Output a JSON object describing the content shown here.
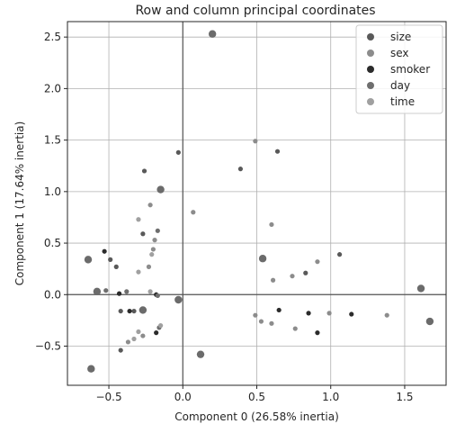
{
  "chart_data": {
    "type": "scatter",
    "title": "Row and column principal coordinates",
    "xlabel": "Component 0 (26.58% inertia)",
    "ylabel": "Component 1 (17.64% inertia)",
    "xlim": [
      -0.78,
      1.78
    ],
    "ylim": [
      -0.88,
      2.65
    ],
    "xticks": [
      -0.5,
      0.0,
      0.5,
      1.0,
      1.5
    ],
    "xtick_labels": [
      "−0.5",
      "0.0",
      "0.5",
      "1.0",
      "1.5"
    ],
    "yticks": [
      -0.5,
      0.0,
      0.5,
      1.0,
      1.5,
      2.0,
      2.5
    ],
    "ytick_labels": [
      "−0.5",
      "0.0",
      "0.5",
      "1.0",
      "1.5",
      "2.0",
      "2.5"
    ],
    "grid": true,
    "reference_lines": {
      "x": 0,
      "y": 0
    },
    "legend": {
      "placement": "top-right",
      "entries": [
        "size",
        "sex",
        "smoker",
        "day",
        "time"
      ]
    },
    "column_points": [
      {
        "x": 0.2,
        "y": 2.53
      },
      {
        "x": -0.15,
        "y": 1.02
      },
      {
        "x": -0.64,
        "y": 0.34
      },
      {
        "x": 0.54,
        "y": 0.35
      },
      {
        "x": -0.58,
        "y": 0.03
      },
      {
        "x": -0.27,
        "y": -0.15
      },
      {
        "x": -0.03,
        "y": -0.05
      },
      {
        "x": 1.61,
        "y": 0.06
      },
      {
        "x": 1.67,
        "y": -0.26
      },
      {
        "x": 0.12,
        "y": -0.58
      },
      {
        "x": -0.62,
        "y": -0.72
      }
    ],
    "series": [
      {
        "name": "size",
        "color": "#595959",
        "points": [
          {
            "x": -0.03,
            "y": 1.38
          },
          {
            "x": -0.26,
            "y": 1.2
          },
          {
            "x": -0.27,
            "y": 0.59
          },
          {
            "x": -0.49,
            "y": 0.34
          },
          {
            "x": -0.45,
            "y": 0.27
          },
          {
            "x": -0.42,
            "y": -0.16
          },
          {
            "x": -0.33,
            "y": -0.16
          },
          {
            "x": -0.42,
            "y": -0.54
          },
          {
            "x": 0.39,
            "y": 1.22
          },
          {
            "x": 0.64,
            "y": 1.39
          },
          {
            "x": 0.83,
            "y": 0.21
          },
          {
            "x": 1.06,
            "y": 0.39
          }
        ]
      },
      {
        "name": "sex",
        "color": "#8c8c8c",
        "points": [
          {
            "x": -0.22,
            "y": 0.87
          },
          {
            "x": -0.19,
            "y": 0.53
          },
          {
            "x": -0.2,
            "y": 0.44
          },
          {
            "x": -0.23,
            "y": 0.27
          },
          {
            "x": -0.37,
            "y": -0.46
          },
          {
            "x": -0.27,
            "y": -0.4
          },
          {
            "x": 0.07,
            "y": 0.8
          },
          {
            "x": 0.49,
            "y": 1.49
          },
          {
            "x": 0.6,
            "y": 0.68
          },
          {
            "x": 0.61,
            "y": 0.14
          },
          {
            "x": 0.74,
            "y": 0.18
          },
          {
            "x": 0.91,
            "y": 0.32
          },
          {
            "x": 0.49,
            "y": -0.2
          },
          {
            "x": 0.53,
            "y": -0.26
          },
          {
            "x": 0.6,
            "y": -0.28
          },
          {
            "x": 0.76,
            "y": -0.33
          },
          {
            "x": 0.99,
            "y": -0.18
          },
          {
            "x": 1.38,
            "y": -0.2
          }
        ]
      },
      {
        "name": "smoker",
        "color": "#2b2b2b",
        "points": [
          {
            "x": -0.53,
            "y": 0.42
          },
          {
            "x": -0.43,
            "y": 0.01
          },
          {
            "x": -0.36,
            "y": -0.16
          },
          {
            "x": -0.18,
            "y": 0.0
          },
          {
            "x": -0.18,
            "y": -0.37
          },
          {
            "x": 0.65,
            "y": -0.15
          },
          {
            "x": 0.85,
            "y": -0.18
          },
          {
            "x": 0.91,
            "y": -0.37
          },
          {
            "x": 1.14,
            "y": -0.19
          }
        ]
      },
      {
        "name": "day",
        "color": "#6e6e6e",
        "points": [
          {
            "x": -0.17,
            "y": 0.62
          },
          {
            "x": -0.52,
            "y": 0.04
          },
          {
            "x": -0.16,
            "y": -0.32
          },
          {
            "x": -0.38,
            "y": 0.03
          },
          {
            "x": -0.17,
            "y": -0.01
          }
        ]
      },
      {
        "name": "time",
        "color": "#a0a0a0",
        "points": [
          {
            "x": -0.3,
            "y": 0.73
          },
          {
            "x": -0.21,
            "y": 0.39
          },
          {
            "x": -0.3,
            "y": 0.22
          },
          {
            "x": -0.22,
            "y": 0.03
          },
          {
            "x": -0.33,
            "y": -0.43
          },
          {
            "x": -0.3,
            "y": -0.36
          },
          {
            "x": -0.15,
            "y": -0.3
          }
        ]
      }
    ]
  }
}
